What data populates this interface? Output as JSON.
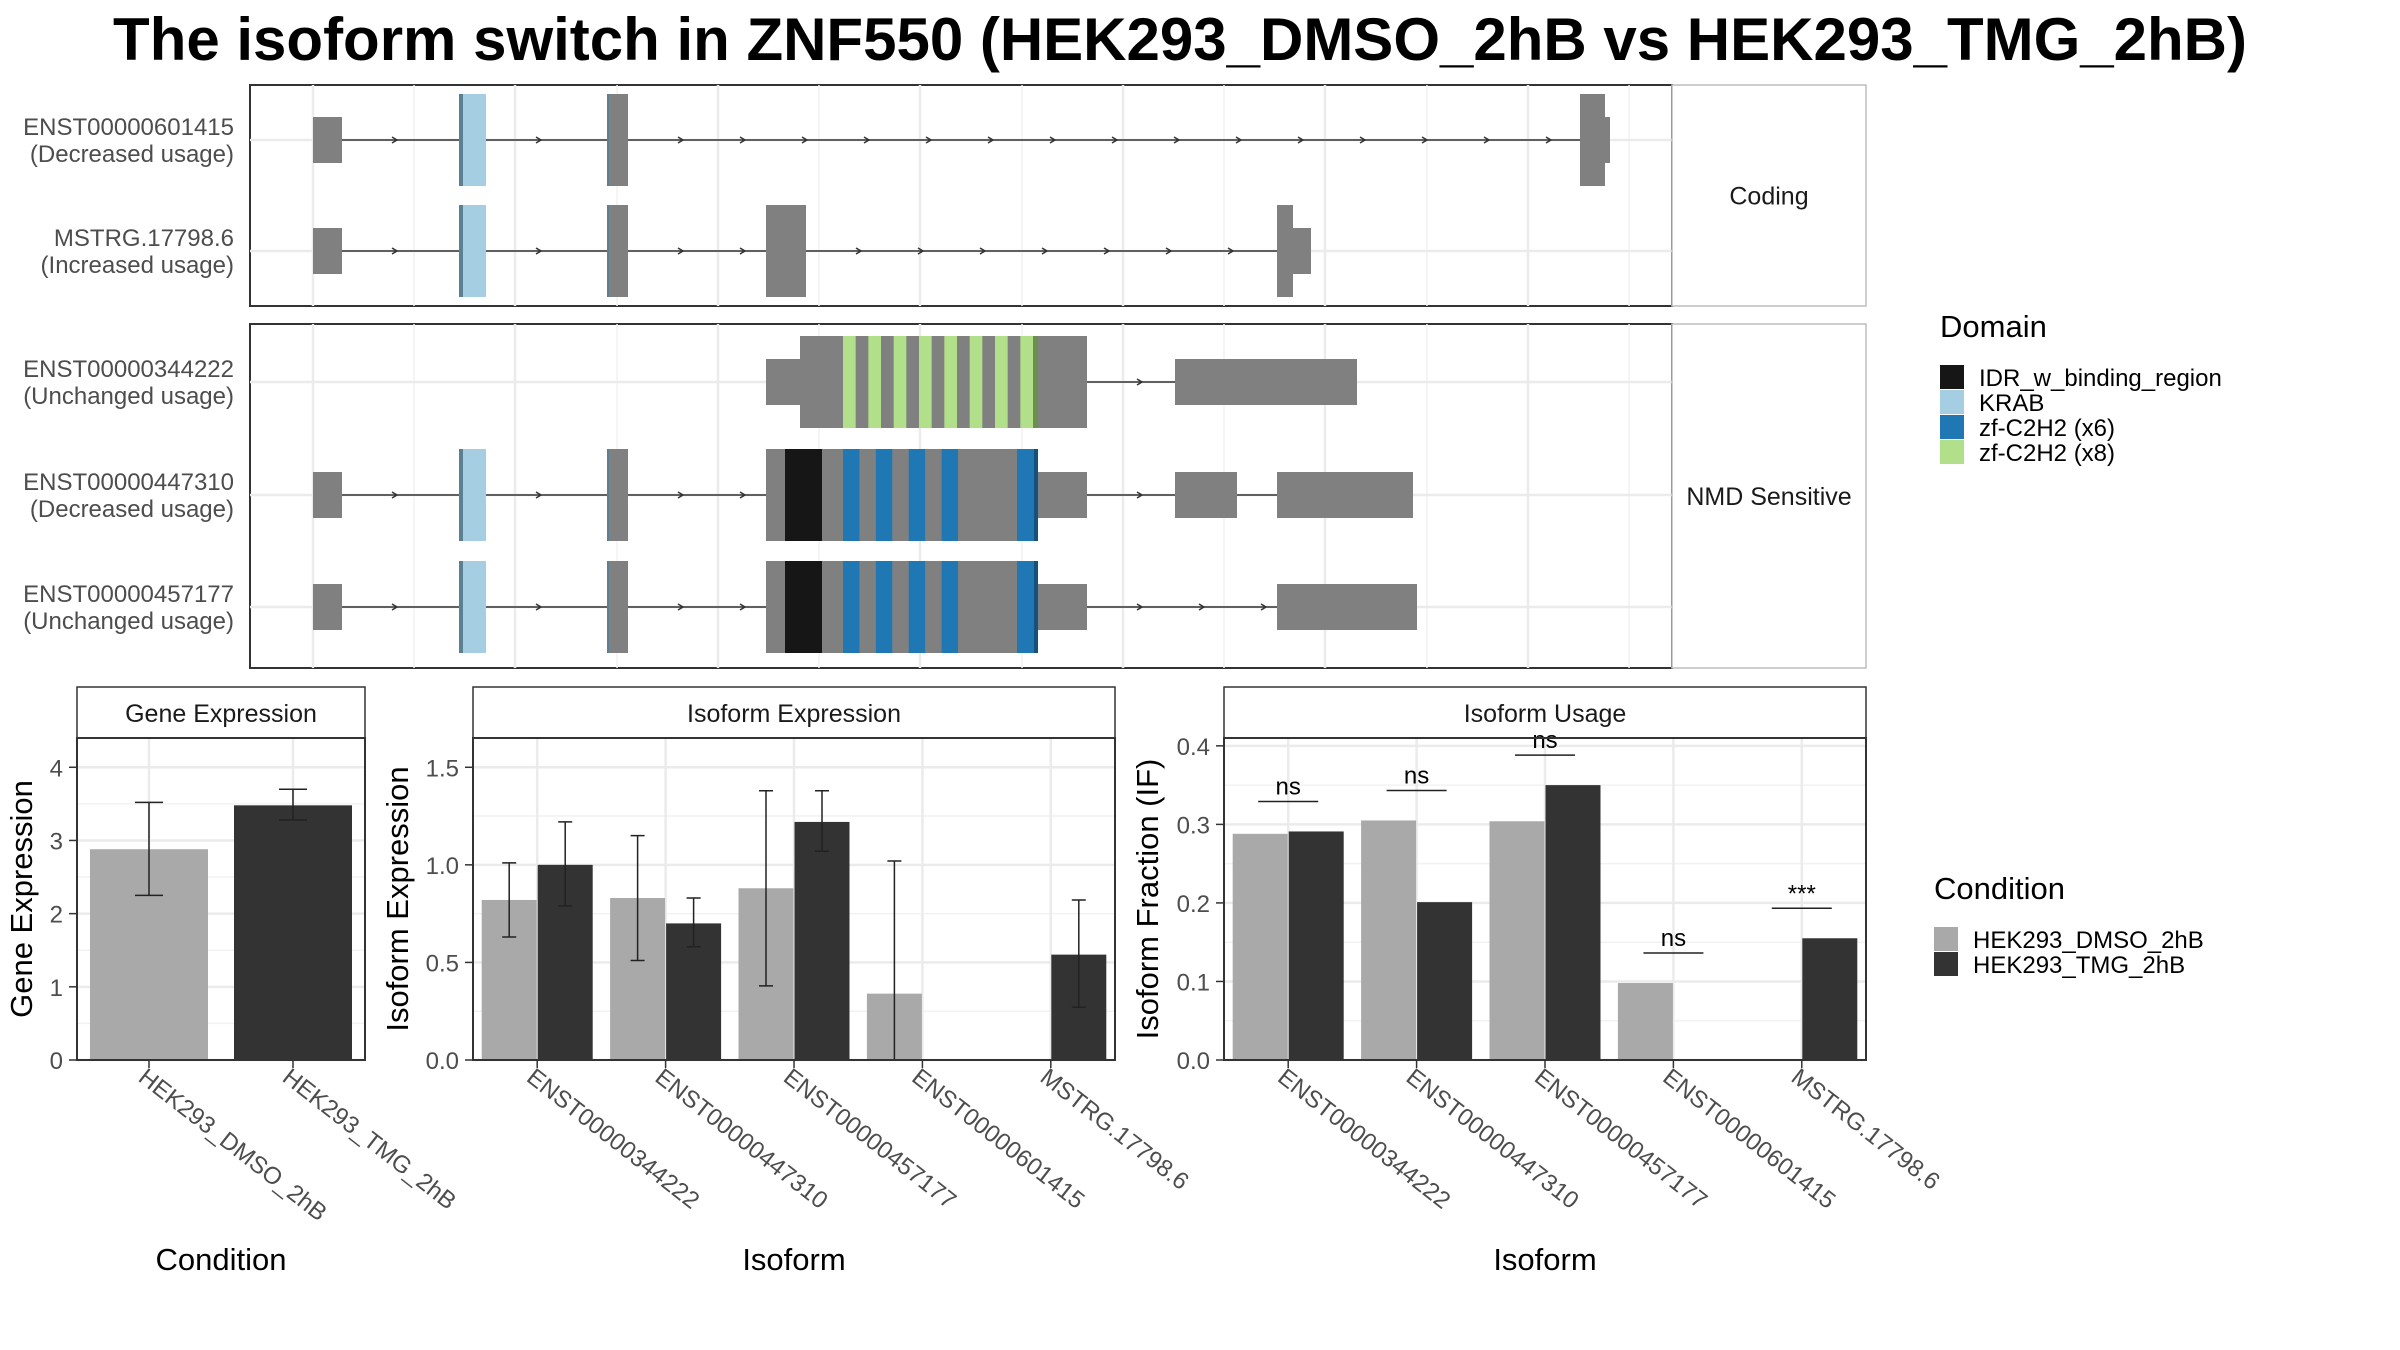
{
  "title": "The isoform switch in ZNF550 (HEK293_DMSO_2hB vs HEK293_TMG_2hB)",
  "colors": {
    "exon": "#808080",
    "idr": "#161616",
    "krab": "#a6cee3",
    "zf6": "#1f78b4",
    "zf8": "#b2df8a",
    "dmso": "#a9a9a9",
    "tmg": "#333333"
  },
  "structure": {
    "facets": [
      {
        "label": "Coding",
        "transcripts": [
          {
            "id": "ENST00000601415",
            "usage": "(Decreased usage)"
          },
          {
            "id": "MSTRG.17798.6",
            "usage": "(Increased usage)"
          }
        ]
      },
      {
        "label": "NMD Sensitive",
        "transcripts": [
          {
            "id": "ENST00000344222",
            "usage": "(Unchanged usage)"
          },
          {
            "id": "ENST00000447310",
            "usage": "(Decreased usage)"
          },
          {
            "id": "ENST00000457177",
            "usage": "(Unchanged usage)"
          }
        ]
      }
    ]
  },
  "legend_domain": {
    "title": "Domain",
    "items": [
      {
        "label": "IDR_w_binding_region",
        "color": "#161616"
      },
      {
        "label": "KRAB",
        "color": "#a6cee3"
      },
      {
        "label": "zf-C2H2 (x6)",
        "color": "#1f78b4"
      },
      {
        "label": "zf-C2H2 (x8)",
        "color": "#b2df8a"
      }
    ]
  },
  "legend_condition": {
    "title": "Condition",
    "items": [
      {
        "label": "HEK293_DMSO_2hB",
        "color": "#a9a9a9"
      },
      {
        "label": "HEK293_TMG_2hB",
        "color": "#333333"
      }
    ]
  },
  "chart_data": [
    {
      "type": "bar",
      "title": "Gene Expression",
      "xlabel": "Condition",
      "ylabel": "Gene Expression",
      "ylim": [
        0,
        4.4
      ],
      "yticks": [
        0,
        1,
        2,
        3,
        4
      ],
      "categories": [
        "HEK293_DMSO_2hB",
        "HEK293_TMG_2hB"
      ],
      "values": [
        2.88,
        3.48
      ],
      "error_low": [
        2.25,
        3.28
      ],
      "error_high": [
        3.52,
        3.7
      ]
    },
    {
      "type": "bar",
      "title": "Isoform Expression",
      "xlabel": "Isoform",
      "ylabel": "Isoform Expression",
      "ylim": [
        0,
        1.65
      ],
      "yticks": [
        0.0,
        0.5,
        1.0,
        1.5
      ],
      "categories": [
        "ENST00000344222",
        "ENST00000447310",
        "ENST00000457177",
        "ENST00000601415",
        "MSTRG.17798.6"
      ],
      "series": [
        {
          "name": "HEK293_DMSO_2hB",
          "values": [
            0.82,
            0.83,
            0.88,
            0.34,
            0.0
          ],
          "error_low": [
            0.63,
            0.51,
            0.38,
            0.0,
            0.0
          ],
          "error_high": [
            1.01,
            1.15,
            1.38,
            1.02,
            0.0
          ]
        },
        {
          "name": "HEK293_TMG_2hB",
          "values": [
            1.0,
            0.7,
            1.22,
            0.0,
            0.54
          ],
          "error_low": [
            0.79,
            0.58,
            1.07,
            0.0,
            0.27
          ],
          "error_high": [
            1.22,
            0.83,
            1.38,
            0.0,
            0.82
          ]
        }
      ]
    },
    {
      "type": "bar",
      "title": "Isoform Usage",
      "xlabel": "Isoform",
      "ylabel": "Isoform Fraction (IF)",
      "ylim": [
        0,
        0.41
      ],
      "yticks": [
        0.0,
        0.1,
        0.2,
        0.3,
        0.4
      ],
      "categories": [
        "ENST00000344222",
        "ENST00000447310",
        "ENST00000457177",
        "ENST00000601415",
        "MSTRG.17798.6"
      ],
      "series": [
        {
          "name": "HEK293_DMSO_2hB",
          "values": [
            0.288,
            0.305,
            0.304,
            0.098,
            0.0
          ]
        },
        {
          "name": "HEK293_TMG_2hB",
          "values": [
            0.291,
            0.201,
            0.35,
            0.0,
            0.155
          ]
        }
      ],
      "significance": [
        "ns",
        "ns",
        "ns",
        "ns",
        "***"
      ]
    }
  ]
}
